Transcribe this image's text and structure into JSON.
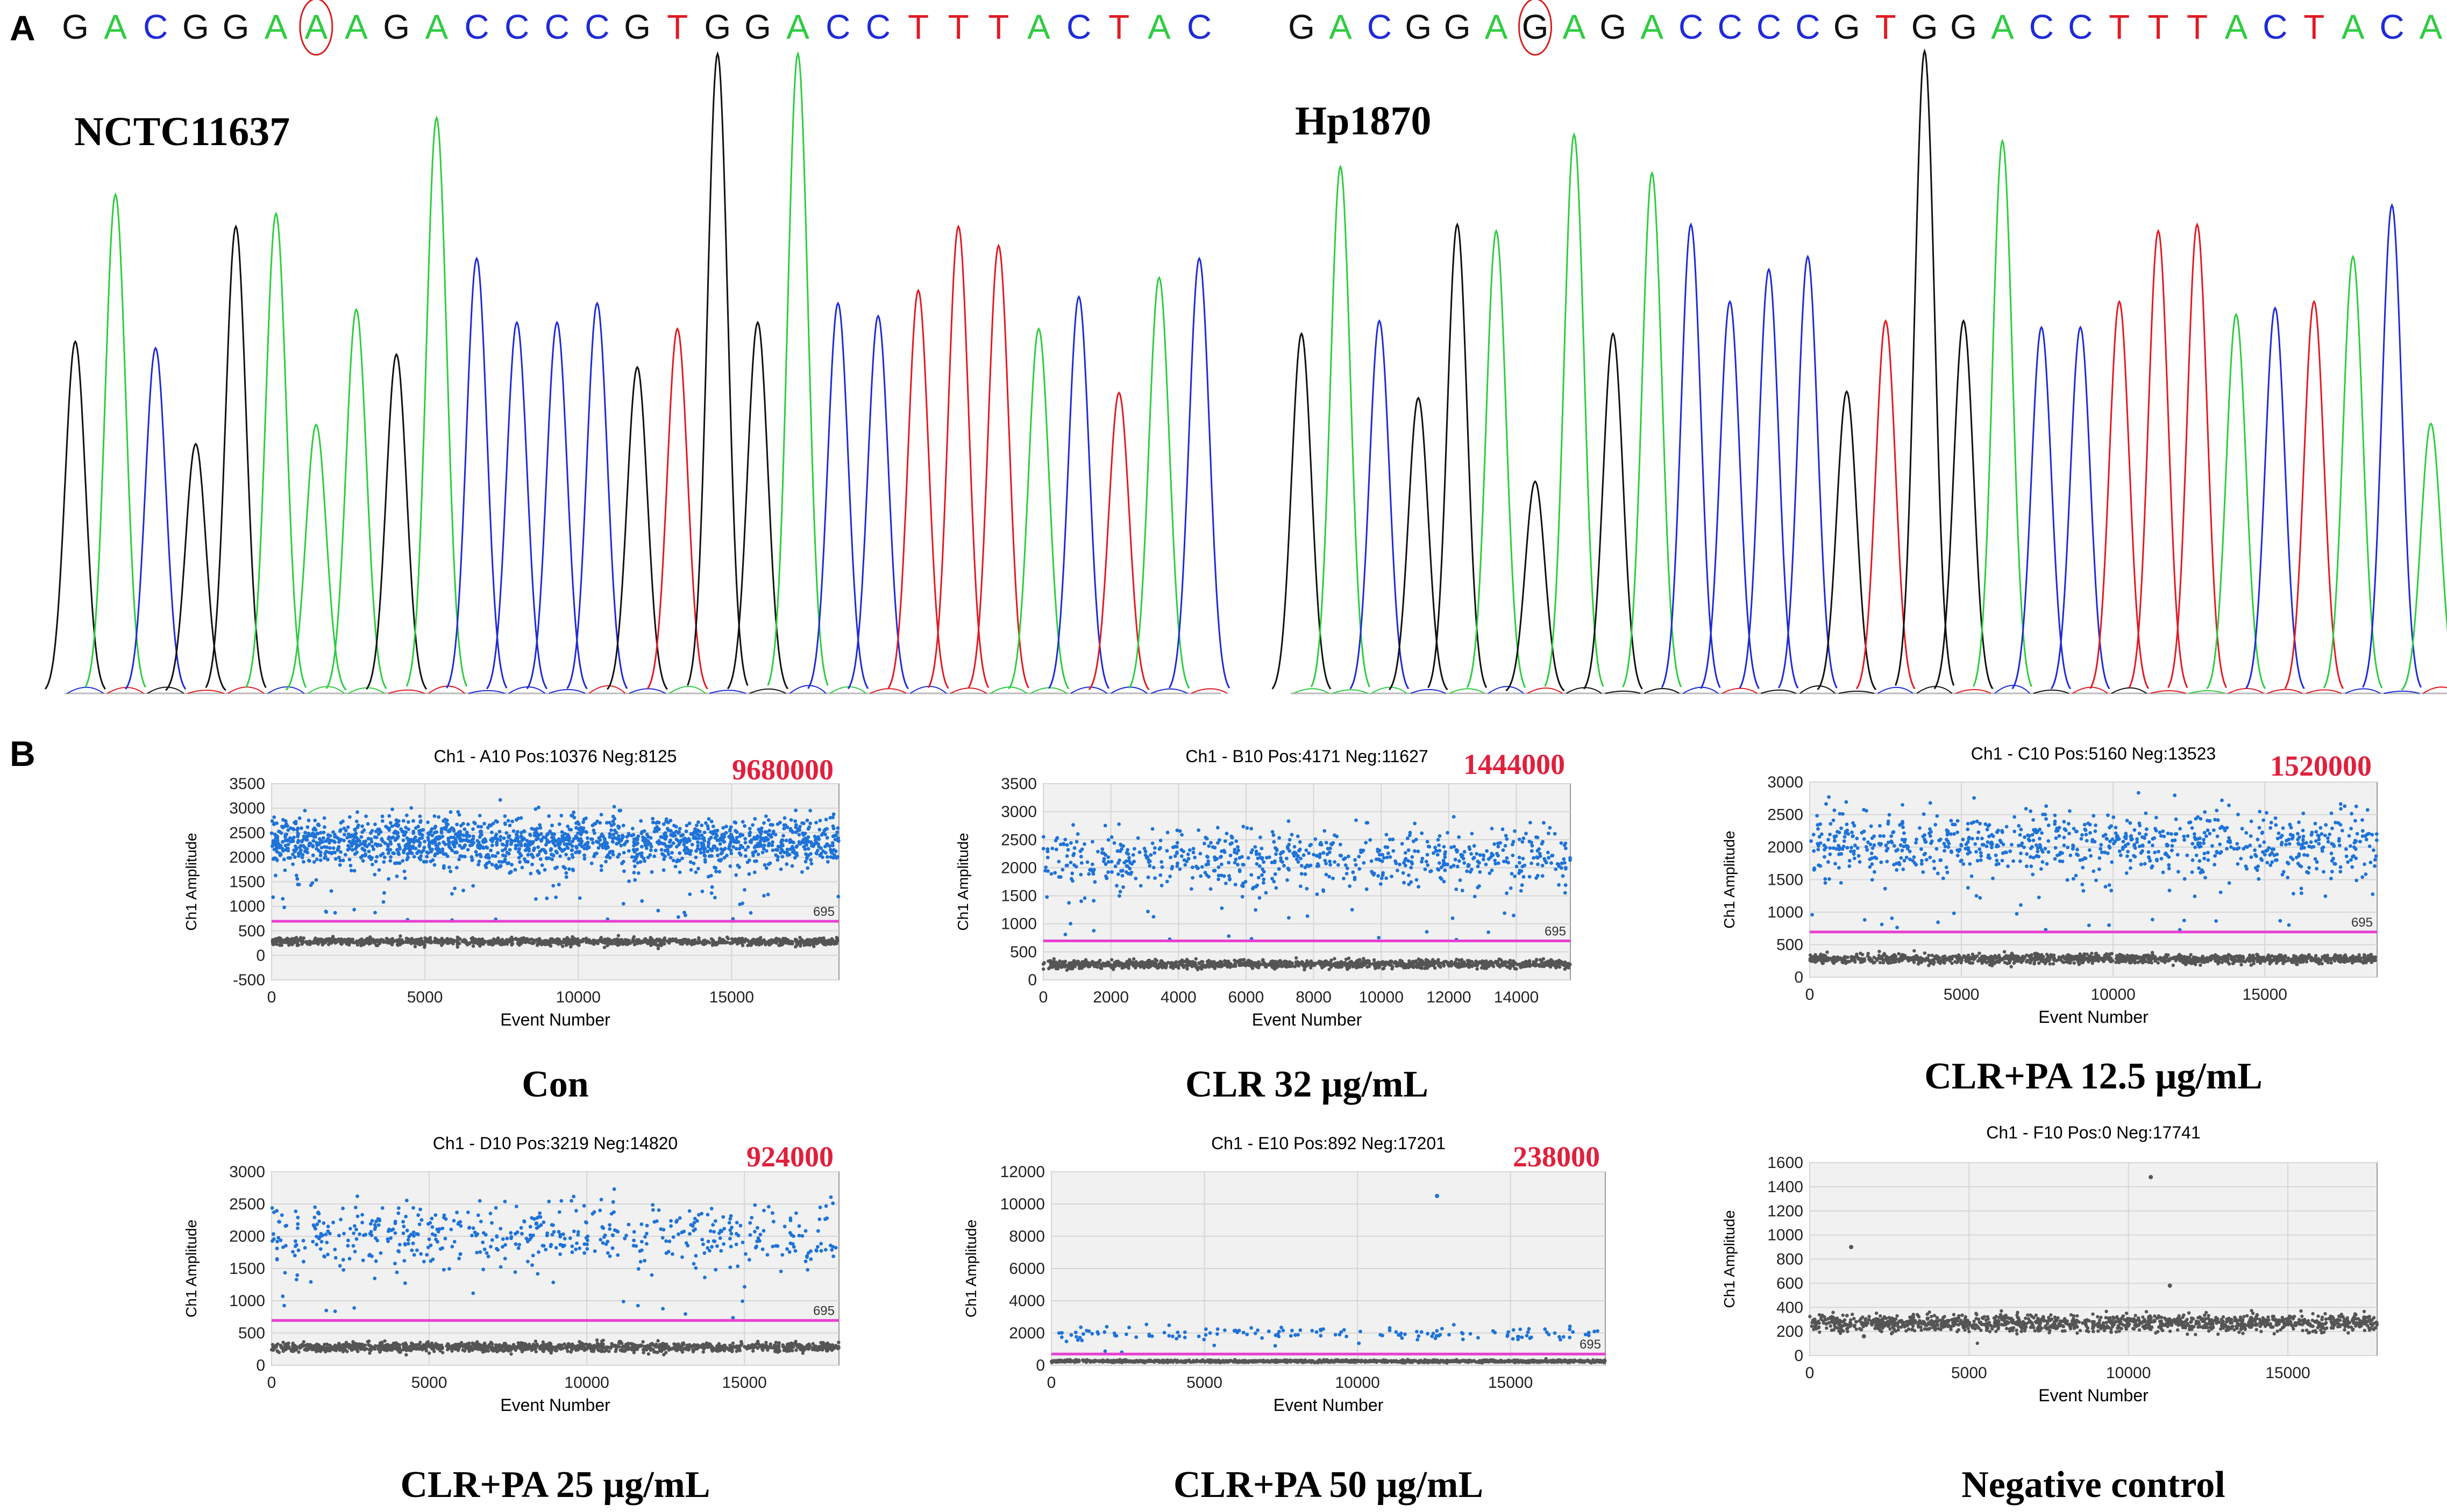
{
  "panel_a": {
    "label": "A",
    "traces": [
      {
        "sample_name": "NCTC11637",
        "sequence": [
          "G",
          "A",
          "C",
          "G",
          "G",
          "A",
          "A",
          "A",
          "G",
          "A",
          "C",
          "C",
          "C",
          "C",
          "G",
          "T",
          "G",
          "G",
          "A",
          "C",
          "C",
          "T",
          "T",
          "T",
          "A",
          "C",
          "T",
          "A",
          "C"
        ],
        "highlight_index": 6,
        "peak_heights": [
          0.55,
          0.78,
          0.54,
          0.39,
          0.73,
          0.75,
          0.42,
          0.6,
          0.53,
          0.9,
          0.68,
          0.58,
          0.58,
          0.61,
          0.51,
          0.57,
          1.0,
          0.58,
          1.0,
          0.61,
          0.59,
          0.63,
          0.73,
          0.7,
          0.57,
          0.62,
          0.47,
          0.65,
          0.68
        ]
      },
      {
        "sample_name": "Hp1870",
        "sequence": [
          "G",
          "A",
          "C",
          "G",
          "G",
          "A",
          "G",
          "A",
          "G",
          "A",
          "C",
          "C",
          "C",
          "C",
          "G",
          "T",
          "G",
          "G",
          "A",
          "C",
          "C",
          "T",
          "T",
          "T",
          "A",
          "C",
          "T",
          "A",
          "C",
          "A"
        ],
        "highlight_index": 6,
        "peak_heights": [
          0.56,
          0.82,
          0.58,
          0.46,
          0.73,
          0.72,
          0.33,
          0.87,
          0.56,
          0.81,
          0.73,
          0.61,
          0.66,
          0.68,
          0.47,
          0.58,
          1.0,
          0.58,
          0.86,
          0.57,
          0.57,
          0.61,
          0.72,
          0.73,
          0.59,
          0.6,
          0.61,
          0.68,
          0.76,
          0.42
        ]
      }
    ],
    "base_colors": {
      "A": "#2ecc40",
      "C": "#1f2bd6",
      "G": "#111111",
      "T": "#e01b24"
    }
  },
  "panel_b": {
    "label": "B",
    "threshold_label": "695",
    "threshold_color": "#e83fd1",
    "positive_color": "#1e73d8",
    "negative_color": "#555555"
  },
  "chart_data": [
    {
      "type": "scatter",
      "title": "Ch1 - A10 Pos:10376 Neg:8125",
      "copy_number": "9680000",
      "condition": "Con",
      "xlabel": "Event Number",
      "ylabel": "Ch1 Amplitude",
      "xlim": [
        0,
        18500
      ],
      "ylim": [
        -500,
        3500
      ],
      "xticks": [
        0,
        5000,
        10000,
        15000
      ],
      "yticks": [
        -500,
        0,
        500,
        1000,
        1500,
        2000,
        2500,
        3000,
        3500
      ],
      "threshold": 695,
      "positive_band_mean": 2300,
      "negative_band_mean": 280,
      "positive_count": 10376,
      "negative_count": 8125
    },
    {
      "type": "scatter",
      "title": "Ch1 - B10 Pos:4171 Neg:11627",
      "copy_number": "1444000",
      "condition": "CLR 32 μg/mL",
      "xlabel": "Event Number",
      "ylabel": "Ch1 Amplitude",
      "xlim": [
        0,
        15600
      ],
      "ylim": [
        0,
        3500
      ],
      "xticks": [
        0,
        2000,
        4000,
        6000,
        8000,
        10000,
        12000,
        14000
      ],
      "yticks": [
        0,
        500,
        1000,
        1500,
        2000,
        2500,
        3000,
        3500
      ],
      "threshold": 695,
      "positive_band_mean": 2150,
      "negative_band_mean": 280,
      "positive_count": 4171,
      "negative_count": 11627
    },
    {
      "type": "scatter",
      "title": "Ch1 - C10 Pos:5160 Neg:13523",
      "copy_number": "1520000",
      "condition": "CLR+PA 12.5 μg/mL",
      "xlabel": "Event Number",
      "ylabel": "Ch1 Amplitude",
      "xlim": [
        0,
        18700
      ],
      "ylim": [
        0,
        3000
      ],
      "xticks": [
        0,
        5000,
        10000,
        15000
      ],
      "yticks": [
        0,
        500,
        1000,
        1500,
        2000,
        2500,
        3000
      ],
      "threshold": 695,
      "positive_band_mean": 2050,
      "negative_band_mean": 280,
      "positive_count": 5160,
      "negative_count": 13523
    },
    {
      "type": "scatter",
      "title": "Ch1 - D10 Pos:3219 Neg:14820",
      "copy_number": "924000",
      "condition": "CLR+PA 25 μg/mL",
      "xlabel": "Event Number",
      "ylabel": "Ch1 Amplitude",
      "xlim": [
        0,
        18000
      ],
      "ylim": [
        0,
        3000
      ],
      "xticks": [
        0,
        5000,
        10000,
        15000
      ],
      "yticks": [
        0,
        500,
        1000,
        1500,
        2000,
        2500,
        3000
      ],
      "threshold": 695,
      "positive_band_mean": 2000,
      "negative_band_mean": 280,
      "positive_count": 3219,
      "negative_count": 14820
    },
    {
      "type": "scatter",
      "title": "Ch1 - E10 Pos:892 Neg:17201",
      "copy_number": "238000",
      "condition": "CLR+PA 50 μg/mL",
      "xlabel": "Event Number",
      "ylabel": "Ch1 Amplitude",
      "xlim": [
        0,
        18100
      ],
      "ylim": [
        0,
        12000
      ],
      "xticks": [
        0,
        5000,
        10000,
        15000
      ],
      "yticks": [
        0,
        2000,
        4000,
        6000,
        8000,
        10000,
        12000
      ],
      "threshold": 695,
      "positive_band_mean": 2000,
      "negative_band_mean": 250,
      "positive_count": 892,
      "negative_count": 17201,
      "outliers": [
        [
          12600,
          10500
        ]
      ]
    },
    {
      "type": "scatter",
      "title": "Ch1 - F10 Pos:0 Neg:17741",
      "copy_number": "",
      "condition": "Negative control",
      "xlabel": "Event Number",
      "ylabel": "Ch1 Amplitude",
      "xlim": [
        0,
        17800
      ],
      "ylim": [
        0,
        1600
      ],
      "xticks": [
        0,
        5000,
        10000,
        15000
      ],
      "yticks": [
        0,
        200,
        400,
        600,
        800,
        1000,
        1200,
        1400,
        1600
      ],
      "threshold": null,
      "positive_band_mean": null,
      "negative_band_mean": 270,
      "positive_count": 0,
      "negative_count": 17741,
      "outliers": [
        [
          1300,
          900
        ],
        [
          10700,
          1480
        ],
        [
          11300,
          580
        ],
        [
          1700,
          160
        ]
      ]
    }
  ]
}
